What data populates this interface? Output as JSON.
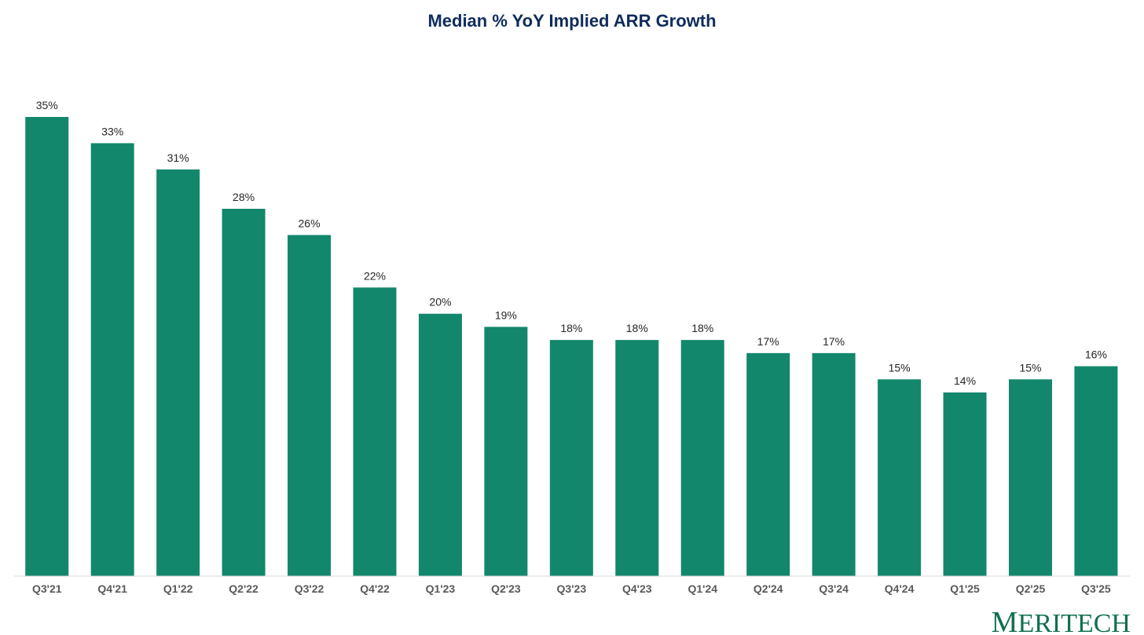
{
  "colors": {
    "bar": "#13876b",
    "title": "#0f2c5c",
    "axis": "#d9d9d9",
    "logo": "#11704f"
  },
  "logo": {
    "initial": "M",
    "rest": "ERITECH"
  },
  "chart_data": {
    "type": "bar",
    "title": "Median % YoY Implied ARR Growth",
    "xlabel": "",
    "ylabel": "",
    "ylim": [
      0,
      38
    ],
    "grid": false,
    "legend": "none",
    "value_suffix": "%",
    "categories": [
      "Q3'21",
      "Q4'21",
      "Q1'22",
      "Q2'22",
      "Q3'22",
      "Q4'22",
      "Q1'23",
      "Q2'23",
      "Q3'23",
      "Q4'23",
      "Q1'24",
      "Q2'24",
      "Q3'24",
      "Q4'24",
      "Q1'25",
      "Q2'25",
      "Q3'25"
    ],
    "series": [
      {
        "name": "Median % YoY Implied ARR Growth",
        "values": [
          35,
          33,
          31,
          28,
          26,
          22,
          20,
          19,
          18,
          18,
          18,
          17,
          17,
          15,
          14,
          15,
          16
        ]
      }
    ]
  }
}
